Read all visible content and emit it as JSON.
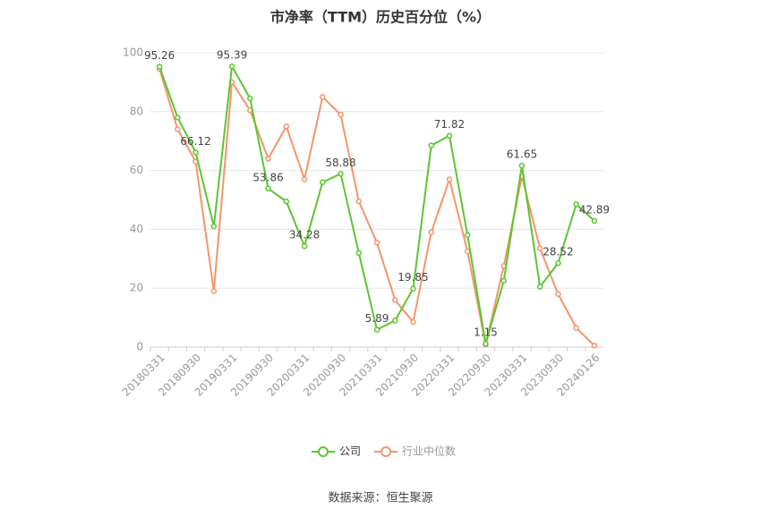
{
  "chart_data": {
    "type": "line",
    "title": "市净率（TTM）历史百分位（%）",
    "source": "数据来源：恒生聚源",
    "categories": [
      "20180331",
      null,
      "20180930",
      null,
      "20190331",
      null,
      "20190930",
      null,
      "20200331",
      null,
      "20200930",
      null,
      "20210331",
      null,
      "20210930",
      null,
      "20220331",
      null,
      "20220930",
      null,
      "20230331",
      null,
      "20230930",
      null,
      "20240126"
    ],
    "series": [
      {
        "name": "公司",
        "color": "#5cc531",
        "values": [
          95.26,
          78,
          66.12,
          41,
          95.39,
          84.5,
          53.86,
          49.5,
          34.28,
          56,
          58.88,
          32,
          5.89,
          9,
          19.85,
          68.5,
          71.82,
          38,
          1.15,
          22.5,
          61.65,
          20.5,
          28.52,
          48.5,
          42.89
        ],
        "value_labels": [
          "95.26",
          null,
          "66.12",
          null,
          "95.39",
          null,
          "53.86",
          null,
          "34.28",
          null,
          "58.88",
          null,
          "5.89",
          null,
          "19.85",
          null,
          "71.82",
          null,
          "1.15",
          null,
          "61.65",
          null,
          "28.52",
          null,
          "42.89"
        ]
      },
      {
        "name": "行业中位数",
        "color": "#f4956a",
        "values": [
          94.5,
          74,
          63,
          19,
          90,
          80.5,
          64,
          75,
          57,
          85,
          79,
          49.5,
          35.5,
          16,
          8.5,
          39,
          57,
          32.5,
          0.8,
          27.5,
          58,
          33.5,
          18,
          6.5,
          0.5
        ]
      }
    ],
    "ylim": [
      0,
      100
    ],
    "yticks": [
      0,
      20,
      40,
      60,
      80,
      100
    ],
    "grid": true
  }
}
